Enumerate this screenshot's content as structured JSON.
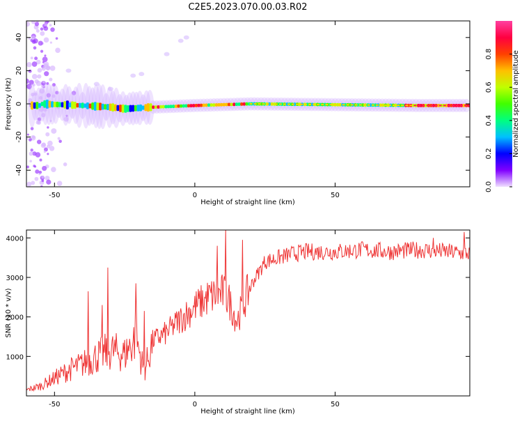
{
  "figure_title": "C2E5.2023.070.00.03.R02",
  "chart_data": [
    {
      "type": "heatmap",
      "title": "C2E5.2023.070.00.03.R02",
      "xlabel": "Height of straight line (km)",
      "ylabel": "Frequency (Hz)",
      "xlim": [
        -60,
        98
      ],
      "ylim": [
        -50,
        50
      ],
      "x_ticks": [
        -50,
        0,
        50
      ],
      "y_ticks": [
        -40,
        -20,
        0,
        20,
        40
      ],
      "colorbar": {
        "label": "Normalized spectral amplitude",
        "range": [
          0,
          1
        ],
        "ticks": [
          0.0,
          0.2,
          0.4,
          0.6,
          0.8
        ],
        "tick_labels": [
          "0.0",
          "0.2",
          "0.4",
          "0.6",
          "0.8"
        ],
        "colormap": [
          "#f0e0ff",
          "#8000ff",
          "#0000ff",
          "#00c0ff",
          "#00ff80",
          "#40ff00",
          "#c0ff00",
          "#ffc000",
          "#ff4000",
          "#ff0040",
          "#ff40a0"
        ]
      },
      "ridge": [
        {
          "x": -55,
          "f": 0
        },
        {
          "x": -40,
          "f": -1
        },
        {
          "x": -30,
          "f": -2
        },
        {
          "x": -25,
          "f": -3
        },
        {
          "x": -15,
          "f": -2
        },
        {
          "x": 0,
          "f": -1
        },
        {
          "x": 20,
          "f": 0
        },
        {
          "x": 50,
          "f": -0.5
        },
        {
          "x": 80,
          "f": -1
        },
        {
          "x": 98,
          "f": -1
        }
      ]
    },
    {
      "type": "line",
      "title": "",
      "xlabel": "Height of straight line (km)",
      "ylabel": "SNR (10 * v/v)",
      "xlim": [
        -60,
        98
      ],
      "ylim": [
        0,
        4200
      ],
      "x_ticks": [
        -50,
        0,
        50
      ],
      "y_ticks": [
        1000,
        2000,
        3000,
        4000
      ],
      "series": [
        {
          "name": "SNR",
          "color": "#ee3333",
          "x": [
            -60,
            -55,
            -50,
            -45,
            -40,
            -35,
            -30,
            -25,
            -21,
            -18,
            -15,
            -10,
            -5,
            0,
            5,
            10,
            12,
            15,
            20,
            25,
            30,
            35,
            40,
            50,
            60,
            70,
            80,
            90,
            98
          ],
          "y": [
            150,
            250,
            450,
            650,
            800,
            1000,
            1150,
            1050,
            1500,
            600,
            1400,
            1600,
            1950,
            2250,
            2500,
            2600,
            2450,
            1900,
            2800,
            3400,
            3500,
            3600,
            3650,
            3650,
            3700,
            3650,
            3700,
            3650,
            3600
          ]
        }
      ],
      "spikes": [
        {
          "x": -38,
          "y": 2650
        },
        {
          "x": -33,
          "y": 2300
        },
        {
          "x": -31,
          "y": 3250
        },
        {
          "x": -21,
          "y": 2850
        },
        {
          "x": -18,
          "y": 2150
        },
        {
          "x": 8,
          "y": 3800
        },
        {
          "x": 11,
          "y": 4200
        },
        {
          "x": 17,
          "y": 3950
        },
        {
          "x": 85,
          "y": 4000
        },
        {
          "x": 96,
          "y": 4150
        }
      ]
    }
  ]
}
